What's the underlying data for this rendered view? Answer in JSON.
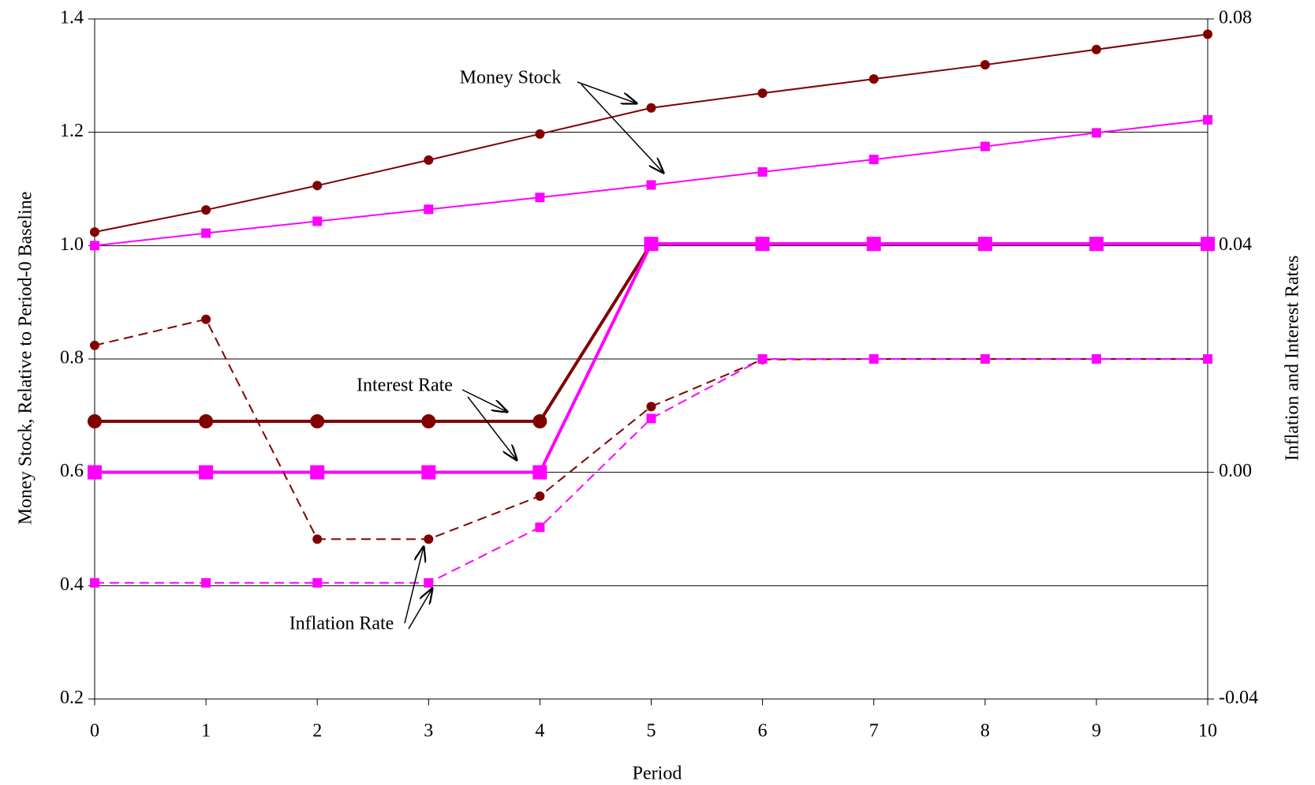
{
  "chart_data": {
    "type": "line",
    "x_label": "Period",
    "y_label": "Money Stock, Relative to Period-0 Baseline",
    "y2_label": "Inflation and Interest Rates",
    "x": [
      0,
      1,
      2,
      3,
      4,
      5,
      6,
      7,
      8,
      9,
      10
    ],
    "xlim": [
      0,
      10
    ],
    "xticks": [
      0,
      1,
      2,
      3,
      4,
      5,
      6,
      7,
      8,
      9,
      10
    ],
    "ylim": [
      0.2,
      1.4
    ],
    "yticks": [
      0.2,
      0.4,
      0.6,
      0.8,
      {
        "value": 1.0,
        "label": "1.0"
      },
      1.2,
      1.4
    ],
    "y2lim": [
      -0.04,
      0.08
    ],
    "y2ticks": [
      {
        "value": -0.04,
        "label": "-0.04"
      },
      {
        "value": 0,
        "label": "0.00"
      },
      {
        "value": 0.04,
        "label": "0.04"
      },
      {
        "value": 0.08,
        "label": "0.08"
      }
    ],
    "grid": true,
    "annotations": [
      "Money Stock",
      "Interest Rate",
      "Inflation Rate"
    ],
    "series": [
      {
        "color": "#800000",
        "marker": "circle",
        "dashed": false,
        "width": 2,
        "axis": "y",
        "values": [
          1.024,
          1.063,
          1.106,
          1.151,
          1.197,
          1.243,
          1.269,
          1.294,
          1.319,
          1.346,
          1.373
        ]
      },
      {
        "color": "#ff00ff",
        "marker": "square",
        "dashed": false,
        "width": 2,
        "axis": "y",
        "values": [
          1.0,
          1.022,
          1.043,
          1.064,
          1.085,
          1.107,
          1.13,
          1.152,
          1.175,
          1.199,
          1.222
        ]
      },
      {
        "color": "#800000",
        "marker": "circle",
        "dashed": false,
        "width": 4,
        "big": true,
        "axis": "y2",
        "values": [
          0.009,
          0.009,
          0.009,
          0.009,
          0.009,
          0.0403,
          0.0403,
          0.0403,
          0.0403,
          0.0403,
          0.0403
        ]
      },
      {
        "color": "#ff00ff",
        "marker": "square",
        "dashed": false,
        "width": 4,
        "big": true,
        "axis": "y2",
        "values": [
          0.0,
          0.0,
          0.0,
          0.0,
          0.0,
          0.0403,
          0.0403,
          0.0403,
          0.0403,
          0.0403,
          0.0403
        ]
      },
      {
        "color": "#800000",
        "marker": "circle",
        "dashed": true,
        "width": 2,
        "axis": "y2",
        "values": [
          0.0224,
          0.027,
          -0.0118,
          -0.0118,
          -0.0042,
          0.0116,
          0.0199,
          0.02,
          0.02,
          0.02,
          0.02
        ]
      },
      {
        "color": "#ff00ff",
        "marker": "square",
        "dashed": true,
        "width": 2,
        "axis": "y2",
        "values": [
          -0.0195,
          -0.0195,
          -0.0195,
          -0.0195,
          -0.0097,
          0.0095,
          0.02,
          0.02,
          0.02,
          0.02,
          0.02
        ]
      }
    ]
  }
}
